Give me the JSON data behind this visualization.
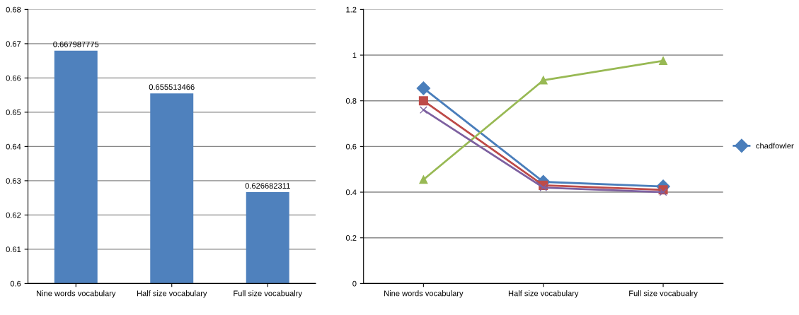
{
  "chart_data": [
    {
      "type": "bar",
      "categories": [
        "Nine words vocabulary",
        "Half size vocabulary",
        "Full size vocabualry"
      ],
      "values": [
        0.667987775,
        0.655513466,
        0.626682311
      ],
      "color": "#4f81bd",
      "data_labels": true,
      "ylim": [
        0.6,
        0.68
      ],
      "yticks": [
        0.6,
        0.61,
        0.62,
        0.63,
        0.64,
        0.65,
        0.66,
        0.67,
        0.68
      ],
      "grid": "y"
    },
    {
      "type": "line",
      "categories": [
        "Nine words vocabulary",
        "Half size vocabulary",
        "Full size vocabualry"
      ],
      "series": [
        {
          "name": "chadfowler",
          "color": "#4a7ebb",
          "marker": "diamond",
          "values": [
            0.855,
            0.445,
            0.425
          ]
        },
        {
          "color": "#be4b48",
          "marker": "square",
          "values": [
            0.8,
            0.43,
            0.41
          ]
        },
        {
          "color": "#98b954",
          "marker": "triangle",
          "values": [
            0.455,
            0.89,
            0.975
          ]
        },
        {
          "color": "#7d60a0",
          "marker": "cross",
          "values": [
            0.76,
            0.42,
            0.4
          ]
        }
      ],
      "ylim": [
        0,
        1.2
      ],
      "yticks": [
        0,
        0.2,
        0.4,
        0.6,
        0.8,
        1,
        1.2
      ],
      "grid": "y",
      "legend": "right"
    }
  ]
}
